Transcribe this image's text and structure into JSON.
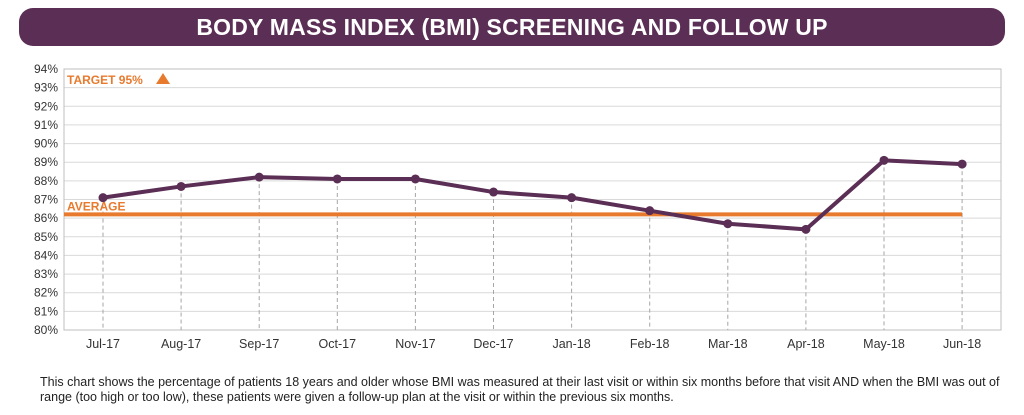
{
  "banner": {
    "title": "BODY MASS INDEX (BMI) SCREENING AND FOLLOW UP",
    "color": "#5b2e55"
  },
  "chart_data": {
    "type": "line",
    "title": "BODY MASS INDEX (BMI) SCREENING AND FOLLOW UP",
    "xlabel": "",
    "ylabel": "",
    "categories": [
      "Jul-17",
      "Aug-17",
      "Sep-17",
      "Oct-17",
      "Nov-17",
      "Dec-17",
      "Jan-18",
      "Feb-18",
      "Mar-18",
      "Apr-18",
      "May-18",
      "Jun-18"
    ],
    "series": [
      {
        "values": [
          87.1,
          87.7,
          88.2,
          88.1,
          88.1,
          87.4,
          87.1,
          86.4,
          85.7,
          85.4,
          89.1,
          88.9
        ],
        "color": "#5b2e55"
      }
    ],
    "ylim": [
      80,
      94
    ],
    "y_ticks": [
      "80%",
      "81%",
      "82%",
      "83%",
      "84%",
      "85%",
      "86%",
      "87%",
      "88%",
      "89%",
      "90%",
      "91%",
      "92%",
      "93%",
      "94%"
    ],
    "grid": "horizontal",
    "average": {
      "label": "AVERAGE",
      "value": 86.2,
      "color": "#e87a2e"
    },
    "target": {
      "label": "TARGET 95%",
      "value": 95,
      "marker": "triangle-up-icon",
      "color": "#e87a2e"
    },
    "legend": "none"
  },
  "footnote": "This chart shows the percentage of patients 18 years and older whose BMI was measured at their last visit or within six months before that visit AND when the BMI was out of range (too high or too low), these patients were given a follow-up plan at the visit or within the previous six months."
}
